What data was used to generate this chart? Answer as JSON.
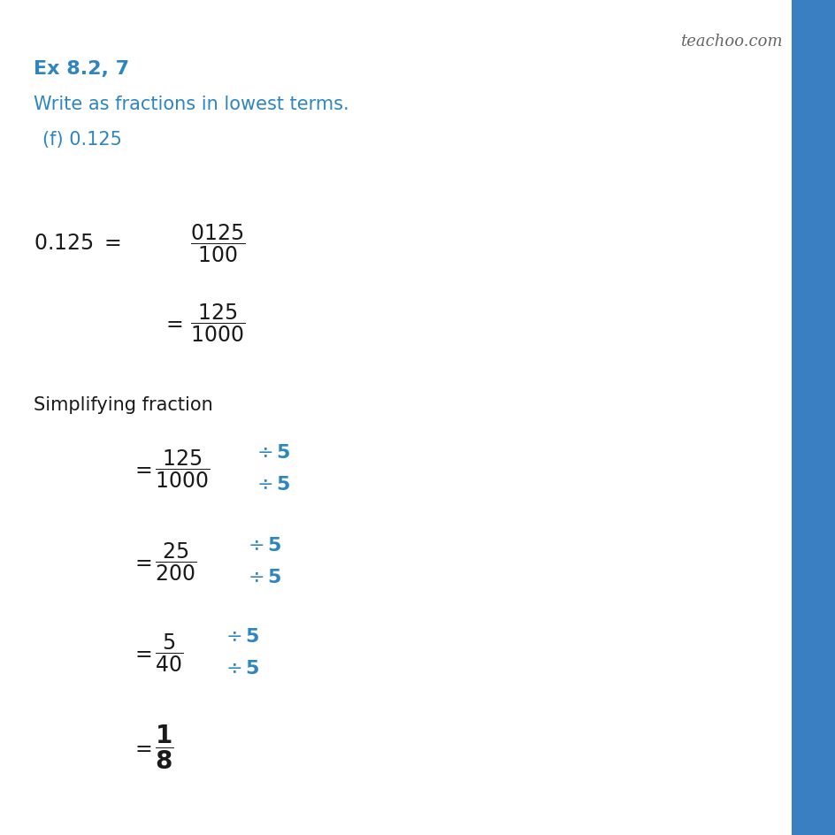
{
  "bg_color": "#ffffff",
  "right_bar_color": "#3a7fc1",
  "blue_color": "#2e86c1",
  "black_color": "#1a1a1a",
  "teachoo_color": "#666666",
  "heading": "Ex 8.2, 7",
  "subheading": "Write as fractions in lowest terms.",
  "part": "(f) 0.125",
  "teachoo_text": "teachoo.com",
  "simplify_label": "Simplifying fraction"
}
